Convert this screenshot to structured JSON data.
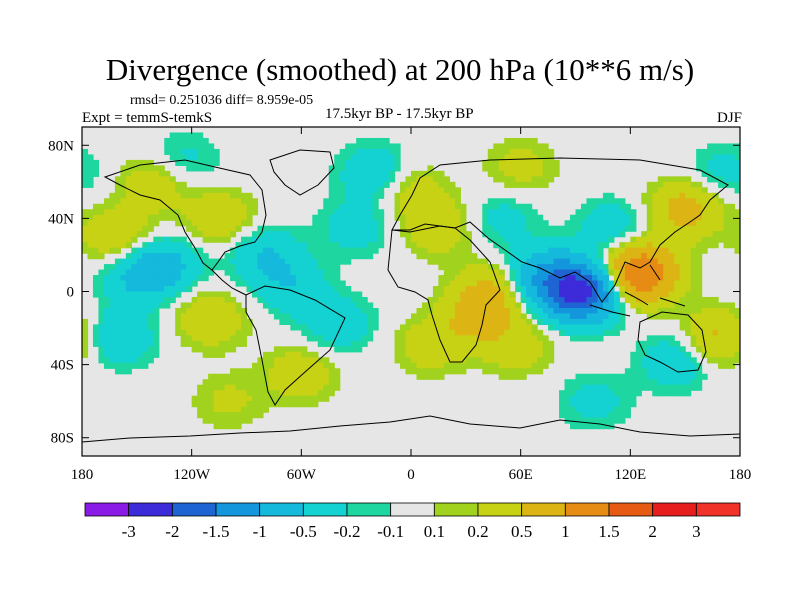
{
  "title": "Divergence (smoothed) at 200 hPa (10**6 m/s)",
  "stats": "rmsd= 0.251036 diff= 8.959e-05",
  "experiment": "Expt = temmS-temkS",
  "period": "17.5kyr BP - 17.5kyr BP",
  "season": "DJF",
  "axes": {
    "x_ticks": [
      "180",
      "120W",
      "60W",
      "0",
      "60E",
      "120E",
      "180"
    ],
    "y_ticks": [
      "80N",
      "40N",
      "0",
      "40S",
      "80S"
    ]
  },
  "colorbar": {
    "labels": [
      "-3",
      "-2",
      "-1.5",
      "-1",
      "-0.5",
      "-0.2",
      "-0.1",
      "0.1",
      "0.2",
      "0.5",
      "1",
      "1.5",
      "2",
      "3"
    ],
    "colors": [
      "#8a1ae6",
      "#3d2bd9",
      "#1e64d2",
      "#1496dc",
      "#14b9dc",
      "#14d2d2",
      "#1ed7a0",
      "#e6e6e6",
      "#a0d21e",
      "#c8d214",
      "#dcb414",
      "#e68c14",
      "#e65a14",
      "#e61e1e",
      "#f03228"
    ]
  },
  "chart_data": {
    "type": "heatmap",
    "title": "Divergence (smoothed) at 200 hPa (10**6 m/s)",
    "xlim": [
      -180,
      180
    ],
    "ylim": [
      -90,
      90
    ],
    "levels": [
      -3,
      -2,
      -1.5,
      -1,
      -0.5,
      -0.2,
      -0.1,
      0.1,
      0.2,
      0.5,
      1,
      1.5,
      2,
      3
    ],
    "anomalies": [
      {
        "lon": 125,
        "lat": 10,
        "value": 1.6
      },
      {
        "lon": 93,
        "lat": 0,
        "value": -2.2
      },
      {
        "lon": 72,
        "lat": 8,
        "value": -0.9
      },
      {
        "lon": 45,
        "lat": 0,
        "value": 0.6
      },
      {
        "lon": 35,
        "lat": -15,
        "value": 0.5
      },
      {
        "lon": 58,
        "lat": -30,
        "value": 0.35
      },
      {
        "lon": 150,
        "lat": 45,
        "value": 0.7
      },
      {
        "lon": 168,
        "lat": -25,
        "value": 0.6
      },
      {
        "lon": 145,
        "lat": -38,
        "value": -0.45
      },
      {
        "lon": 110,
        "lat": 35,
        "value": -0.4
      },
      {
        "lon": -160,
        "lat": 30,
        "value": 0.5
      },
      {
        "lon": -150,
        "lat": 8,
        "value": -0.5
      },
      {
        "lon": -135,
        "lat": 15,
        "value": -0.6
      },
      {
        "lon": -105,
        "lat": 40,
        "value": 0.45
      },
      {
        "lon": -80,
        "lat": 20,
        "value": -0.5
      },
      {
        "lon": -65,
        "lat": 2,
        "value": -0.4
      },
      {
        "lon": -40,
        "lat": -18,
        "value": -0.4
      },
      {
        "lon": -110,
        "lat": -15,
        "value": 0.45
      },
      {
        "lon": -160,
        "lat": -25,
        "value": -0.5
      },
      {
        "lon": -60,
        "lat": -45,
        "value": 0.4
      },
      {
        "lon": 10,
        "lat": -30,
        "value": 0.35
      },
      {
        "lon": -30,
        "lat": 35,
        "value": -0.35
      },
      {
        "lon": 15,
        "lat": 35,
        "value": 0.4
      },
      {
        "lon": 50,
        "lat": 40,
        "value": -0.3
      },
      {
        "lon": -20,
        "lat": 65,
        "value": -0.45
      },
      {
        "lon": 0,
        "lat": 55,
        "value": 0.35
      },
      {
        "lon": 60,
        "lat": 68,
        "value": 0.3
      },
      {
        "lon": -140,
        "lat": 60,
        "value": 0.4
      },
      {
        "lon": -125,
        "lat": 72,
        "value": -0.3
      },
      {
        "lon": 170,
        "lat": 65,
        "value": -0.3
      },
      {
        "lon": 100,
        "lat": -60,
        "value": -0.3
      },
      {
        "lon": -100,
        "lat": -60,
        "value": 0.25
      }
    ]
  }
}
